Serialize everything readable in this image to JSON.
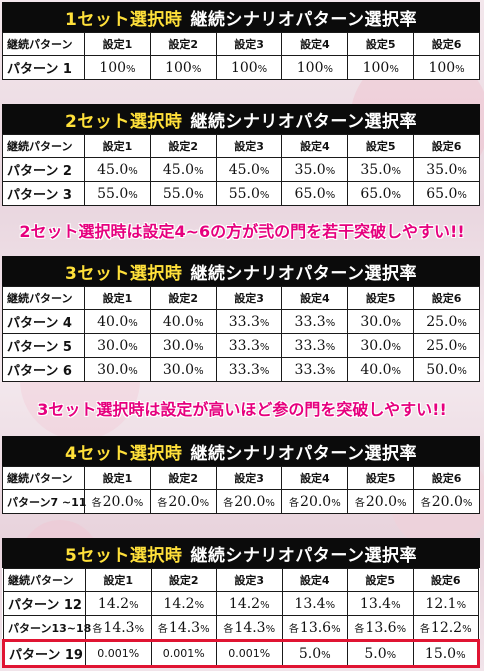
{
  "sections": [
    {
      "title_highlight": "1セット選択時",
      "title_rest": "継続シナリオパターン選択率",
      "header": [
        "継続パターン",
        "設定1",
        "設定2",
        "設定3",
        "設定4",
        "設定5",
        "設定6"
      ],
      "rows": [
        {
          "label": "パターン 1",
          "cells": [
            {
              "v": "100",
              "u": "%"
            },
            {
              "v": "100",
              "u": "%"
            },
            {
              "v": "100",
              "u": "%"
            },
            {
              "v": "100",
              "u": "%"
            },
            {
              "v": "100",
              "u": "%"
            },
            {
              "v": "100",
              "u": "%"
            }
          ]
        }
      ]
    },
    {
      "title_highlight": "2セット選択時",
      "title_rest": "継続シナリオパターン選択率",
      "header": [
        "継続パターン",
        "設定1",
        "設定2",
        "設定3",
        "設定4",
        "設定5",
        "設定6"
      ],
      "rows": [
        {
          "label": "パターン 2",
          "cells": [
            {
              "v": "45.0",
              "u": "%"
            },
            {
              "v": "45.0",
              "u": "%"
            },
            {
              "v": "45.0",
              "u": "%"
            },
            {
              "v": "35.0",
              "u": "%"
            },
            {
              "v": "35.0",
              "u": "%"
            },
            {
              "v": "35.0",
              "u": "%"
            }
          ]
        },
        {
          "label": "パターン 3",
          "cells": [
            {
              "v": "55.0",
              "u": "%"
            },
            {
              "v": "55.0",
              "u": "%"
            },
            {
              "v": "55.0",
              "u": "%"
            },
            {
              "v": "65.0",
              "u": "%"
            },
            {
              "v": "65.0",
              "u": "%"
            },
            {
              "v": "65.0",
              "u": "%"
            }
          ]
        }
      ],
      "note": "2セット選択時は設定4~6の方が弐の門を若干突破しやすい!!"
    },
    {
      "title_highlight": "3セット選択時",
      "title_rest": "継続シナリオパターン選択率",
      "header": [
        "継続パターン",
        "設定1",
        "設定2",
        "設定3",
        "設定4",
        "設定5",
        "設定6"
      ],
      "rows": [
        {
          "label": "パターン 4",
          "cells": [
            {
              "v": "40.0",
              "u": "%"
            },
            {
              "v": "40.0",
              "u": "%"
            },
            {
              "v": "33.3",
              "u": "%"
            },
            {
              "v": "33.3",
              "u": "%"
            },
            {
              "v": "30.0",
              "u": "%"
            },
            {
              "v": "25.0",
              "u": "%"
            }
          ]
        },
        {
          "label": "パターン 5",
          "cells": [
            {
              "v": "30.0",
              "u": "%"
            },
            {
              "v": "30.0",
              "u": "%"
            },
            {
              "v": "33.3",
              "u": "%"
            },
            {
              "v": "33.3",
              "u": "%"
            },
            {
              "v": "30.0",
              "u": "%"
            },
            {
              "v": "25.0",
              "u": "%"
            }
          ]
        },
        {
          "label": "パターン 6",
          "cells": [
            {
              "v": "30.0",
              "u": "%"
            },
            {
              "v": "30.0",
              "u": "%"
            },
            {
              "v": "33.3",
              "u": "%"
            },
            {
              "v": "33.3",
              "u": "%"
            },
            {
              "v": "40.0",
              "u": "%"
            },
            {
              "v": "50.0",
              "u": "%"
            }
          ]
        }
      ],
      "note": "3セット選択時は設定が高いほど参の門を突破しやすい!!"
    },
    {
      "title_highlight": "4セット選択時",
      "title_rest": "継続シナリオパターン選択率",
      "header": [
        "継続パターン",
        "設定1",
        "設定2",
        "設定3",
        "設定4",
        "設定5",
        "設定6"
      ],
      "rows": [
        {
          "label": "パターン7 ~11",
          "small": true,
          "cells": [
            {
              "p": "各",
              "v": "20.0",
              "u": "%"
            },
            {
              "p": "各",
              "v": "20.0",
              "u": "%"
            },
            {
              "p": "各",
              "v": "20.0",
              "u": "%"
            },
            {
              "p": "各",
              "v": "20.0",
              "u": "%"
            },
            {
              "p": "各",
              "v": "20.0",
              "u": "%"
            },
            {
              "p": "各",
              "v": "20.0",
              "u": "%"
            }
          ]
        }
      ]
    },
    {
      "title_highlight": "5セット選択時",
      "title_rest": "継続シナリオパターン選択率",
      "header": [
        "継続パターン",
        "設定1",
        "設定2",
        "設定3",
        "設定4",
        "設定5",
        "設定6"
      ],
      "rows": [
        {
          "label": "パターン 12",
          "cells": [
            {
              "v": "14.2",
              "u": "%"
            },
            {
              "v": "14.2",
              "u": "%"
            },
            {
              "v": "14.2",
              "u": "%"
            },
            {
              "v": "13.4",
              "u": "%"
            },
            {
              "v": "13.4",
              "u": "%"
            },
            {
              "v": "12.1",
              "u": "%"
            }
          ]
        },
        {
          "label": "パターン13~18",
          "small": true,
          "cells": [
            {
              "p": "各",
              "v": "14.3",
              "u": "%"
            },
            {
              "p": "各",
              "v": "14.3",
              "u": "%"
            },
            {
              "p": "各",
              "v": "14.3",
              "u": "%"
            },
            {
              "p": "各",
              "v": "13.6",
              "u": "%"
            },
            {
              "p": "各",
              "v": "13.6",
              "u": "%"
            },
            {
              "p": "各",
              "v": "12.2",
              "u": "%"
            }
          ]
        },
        {
          "label": "パターン 19",
          "highlight": true,
          "cells": [
            {
              "v": "0.001%",
              "small": true
            },
            {
              "v": "0.001%",
              "small": true
            },
            {
              "v": "0.001%",
              "small": true
            },
            {
              "v": "5.0",
              "u": "%"
            },
            {
              "v": "5.0",
              "u": "%"
            },
            {
              "v": "15.0",
              "u": "%"
            }
          ]
        }
      ]
    }
  ],
  "colors": {
    "title_bg": "#0b0b0b",
    "title_highlight": "#ffe03a",
    "note": "#e6007e",
    "highlight_border": "#e01432"
  }
}
